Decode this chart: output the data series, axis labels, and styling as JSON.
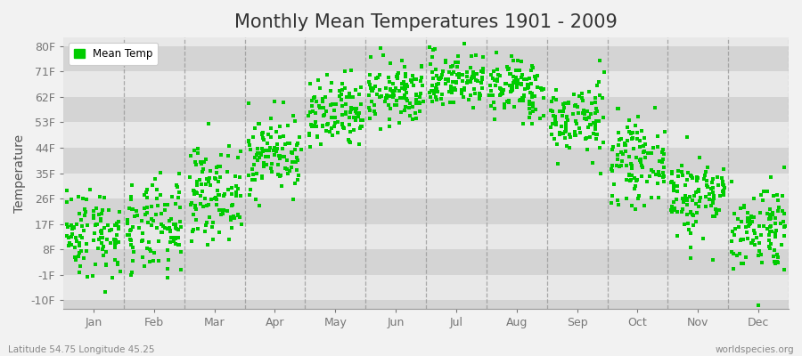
{
  "title": "Monthly Mean Temperatures 1901 - 2009",
  "ylabel": "Temperature",
  "xlabel_labels": [
    "Jan",
    "Feb",
    "Mar",
    "Apr",
    "May",
    "Jun",
    "Jul",
    "Aug",
    "Sep",
    "Oct",
    "Nov",
    "Dec"
  ],
  "ytick_labels": [
    "-10F",
    "-1F",
    "8F",
    "17F",
    "26F",
    "35F",
    "44F",
    "53F",
    "62F",
    "71F",
    "80F"
  ],
  "ytick_values": [
    -10,
    -1,
    8,
    17,
    26,
    35,
    44,
    53,
    62,
    71,
    80
  ],
  "ylim": [
    -13,
    83
  ],
  "dot_color": "#00cc00",
  "dot_size": 5,
  "band_color1": "#e8e8e8",
  "band_color2": "#d4d4d4",
  "vline_color": "#999999",
  "title_fontsize": 15,
  "axis_label_fontsize": 10,
  "tick_fontsize": 9,
  "footer_left": "Latitude 54.75 Longitude 45.25",
  "footer_right": "worldspecies.org",
  "legend_label": "Mean Temp",
  "monthly_means_f": [
    14.0,
    15.0,
    28.0,
    42.0,
    55.0,
    63.0,
    68.0,
    65.0,
    54.0,
    39.0,
    27.0,
    16.0
  ],
  "monthly_stds_f": [
    8.0,
    8.5,
    8.0,
    7.0,
    6.5,
    5.5,
    5.0,
    5.5,
    6.5,
    7.0,
    7.5,
    8.0
  ],
  "n_years": 109,
  "seed": 42
}
